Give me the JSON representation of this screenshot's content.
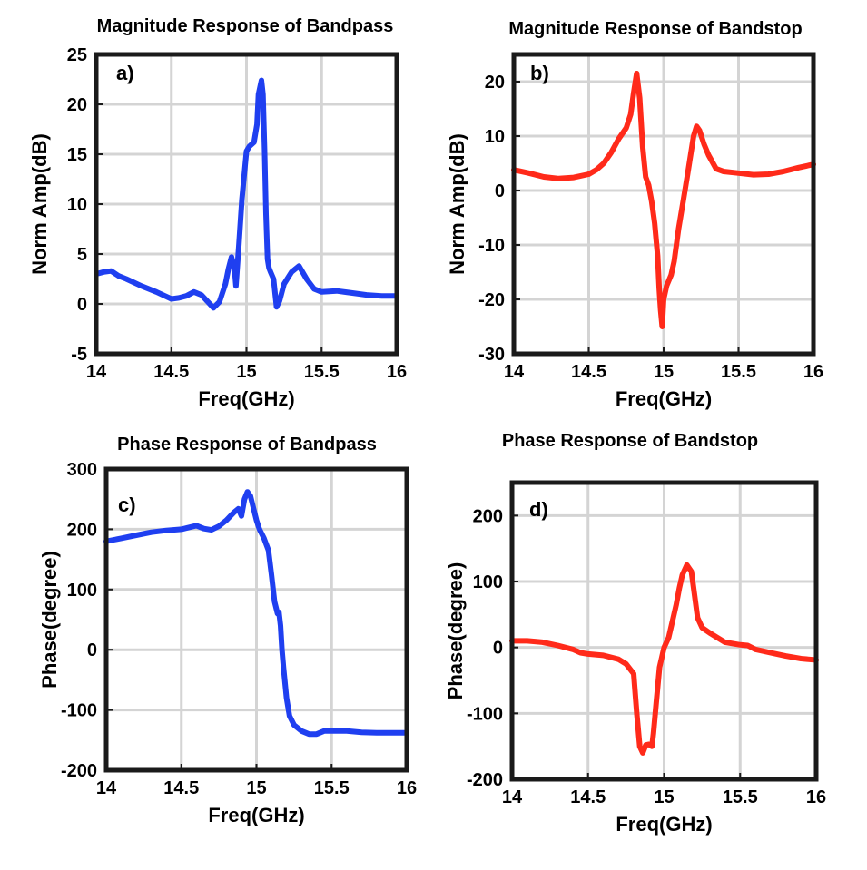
{
  "figure": {
    "background": "#ffffff",
    "axis_color": "#1a1a1a",
    "grid_color": "#d4d4d4"
  },
  "chart_data": [
    {
      "id": "a",
      "type": "line",
      "panel_label": "a)",
      "title": "Magnitude Response of Bandpass",
      "xlabel": "Freq(GHz)",
      "ylabel": "Norm Amp(dB)",
      "xlim": [
        14,
        16
      ],
      "ylim": [
        -5,
        25
      ],
      "xticks": [
        14,
        14.5,
        15,
        15.5,
        16
      ],
      "xtick_labels": [
        "14",
        "14.5",
        "15",
        "15.5",
        "16"
      ],
      "yticks": [
        -5,
        0,
        5,
        10,
        15,
        20,
        25
      ],
      "ytick_labels": [
        "-5",
        "0",
        "5",
        "10",
        "15",
        "20",
        "25"
      ],
      "grid": true,
      "legend": "none",
      "series": [
        {
          "color": "#1f3ff0",
          "x": [
            14.0,
            14.05,
            14.1,
            14.15,
            14.2,
            14.3,
            14.4,
            14.5,
            14.55,
            14.6,
            14.65,
            14.7,
            14.75,
            14.78,
            14.82,
            14.86,
            14.88,
            14.9,
            14.92,
            14.93,
            14.95,
            14.97,
            15.0,
            15.02,
            15.05,
            15.07,
            15.08,
            15.1,
            15.11,
            15.12,
            15.13,
            15.14,
            15.15,
            15.16,
            15.18,
            15.2,
            15.22,
            15.25,
            15.3,
            15.35,
            15.4,
            15.45,
            15.5,
            15.6,
            15.7,
            15.8,
            15.9,
            16.0
          ],
          "y": [
            3.0,
            3.2,
            3.3,
            2.8,
            2.5,
            1.8,
            1.2,
            0.5,
            0.6,
            0.8,
            1.2,
            0.9,
            0.1,
            -0.4,
            0.2,
            2.0,
            3.5,
            4.7,
            3.5,
            1.8,
            6.0,
            10.5,
            15.3,
            15.8,
            16.2,
            18.0,
            21.0,
            22.4,
            21.0,
            15.5,
            9.0,
            4.5,
            3.6,
            3.2,
            2.5,
            -0.3,
            0.3,
            2.0,
            3.2,
            3.8,
            2.5,
            1.5,
            1.2,
            1.3,
            1.1,
            0.9,
            0.8,
            0.8
          ]
        }
      ]
    },
    {
      "id": "b",
      "type": "line",
      "panel_label": "b)",
      "title": "Magnitude Response of Bandstop",
      "xlabel": "Freq(GHz)",
      "ylabel": "Norm Amp(dB)",
      "xlim": [
        14,
        16
      ],
      "ylim": [
        -30,
        25
      ],
      "xticks": [
        14,
        14.5,
        15,
        15.5,
        16
      ],
      "xtick_labels": [
        "14",
        "14.5",
        "15",
        "15.5",
        "16"
      ],
      "yticks": [
        -30,
        -20,
        -10,
        0,
        10,
        20
      ],
      "ytick_labels": [
        "-30",
        "-20",
        "-10",
        "0",
        "10",
        "20"
      ],
      "grid": true,
      "legend": "none",
      "series": [
        {
          "color": "#ff2a1a",
          "x": [
            14.0,
            14.1,
            14.2,
            14.3,
            14.4,
            14.5,
            14.55,
            14.6,
            14.65,
            14.7,
            14.75,
            14.78,
            14.8,
            14.82,
            14.84,
            14.86,
            14.88,
            14.9,
            14.92,
            14.94,
            14.96,
            14.97,
            14.98,
            14.99,
            15.0,
            15.02,
            15.05,
            15.07,
            15.1,
            15.13,
            15.16,
            15.18,
            15.2,
            15.22,
            15.24,
            15.27,
            15.3,
            15.35,
            15.4,
            15.5,
            15.6,
            15.7,
            15.8,
            15.9,
            16.0
          ],
          "y": [
            3.8,
            3.2,
            2.5,
            2.2,
            2.4,
            3.0,
            3.8,
            5.0,
            7.0,
            9.5,
            11.5,
            14.0,
            18.0,
            21.5,
            17.0,
            8.0,
            2.5,
            1.0,
            -2.0,
            -6.0,
            -12.0,
            -18.0,
            -22.0,
            -25.0,
            -20.0,
            -17.5,
            -15.5,
            -13.0,
            -7.0,
            -2.0,
            3.0,
            6.5,
            10.0,
            11.8,
            11.0,
            8.5,
            6.5,
            4.0,
            3.5,
            3.2,
            2.9,
            3.0,
            3.5,
            4.2,
            4.8
          ]
        }
      ]
    },
    {
      "id": "c",
      "type": "line",
      "panel_label": "c)",
      "title": "Phase Response of Bandpass",
      "xlabel": "Freq(GHz)",
      "ylabel": "Phase(degree)",
      "xlim": [
        14,
        16
      ],
      "ylim": [
        -200,
        300
      ],
      "xticks": [
        14,
        14.5,
        15,
        15.5,
        16
      ],
      "xtick_labels": [
        "14",
        "14.5",
        "15",
        "15.5",
        "16"
      ],
      "yticks": [
        -200,
        -100,
        0,
        100,
        200,
        300
      ],
      "ytick_labels": [
        "-200",
        "-100",
        "0",
        "100",
        "200",
        "300"
      ],
      "grid": true,
      "legend": "none",
      "series": [
        {
          "color": "#1f3ff0",
          "x": [
            14.0,
            14.1,
            14.2,
            14.3,
            14.4,
            14.5,
            14.55,
            14.6,
            14.65,
            14.7,
            14.75,
            14.8,
            14.85,
            14.88,
            14.9,
            14.92,
            14.94,
            14.96,
            14.98,
            15.0,
            15.02,
            15.05,
            15.08,
            15.1,
            15.12,
            15.14,
            15.15,
            15.16,
            15.17,
            15.18,
            15.2,
            15.22,
            15.25,
            15.3,
            15.35,
            15.4,
            15.45,
            15.5,
            15.6,
            15.7,
            15.8,
            15.9,
            16.0
          ],
          "y": [
            180,
            185,
            190,
            195,
            198,
            200,
            203,
            206,
            201,
            199,
            205,
            215,
            228,
            234,
            222,
            250,
            262,
            255,
            235,
            215,
            200,
            185,
            165,
            125,
            80,
            60,
            62,
            40,
            0,
            -30,
            -80,
            -110,
            -125,
            -135,
            -140,
            -140,
            -135,
            -135,
            -135,
            -137,
            -138,
            -138,
            -138
          ]
        }
      ]
    },
    {
      "id": "d",
      "type": "line",
      "panel_label": "d)",
      "title": "Phase Response of Bandstop",
      "xlabel": "Freq(GHz)",
      "ylabel": "Phase(degree)",
      "xlim": [
        14,
        16
      ],
      "ylim": [
        -200,
        250
      ],
      "xticks": [
        14,
        14.5,
        15,
        15.5,
        16
      ],
      "xtick_labels": [
        "14",
        "14.5",
        "15",
        "15.5",
        "16"
      ],
      "yticks": [
        -200,
        -100,
        0,
        100,
        200
      ],
      "ytick_labels": [
        "-200",
        "-100",
        "0",
        "100",
        "200"
      ],
      "grid": true,
      "legend": "none",
      "series": [
        {
          "color": "#ff2a1a",
          "x": [
            14.0,
            14.1,
            14.2,
            14.3,
            14.4,
            14.45,
            14.5,
            14.6,
            14.7,
            14.75,
            14.8,
            14.82,
            14.84,
            14.86,
            14.88,
            14.9,
            14.92,
            14.93,
            14.95,
            14.97,
            15.0,
            15.03,
            15.05,
            15.08,
            15.1,
            15.12,
            15.15,
            15.18,
            15.2,
            15.22,
            15.25,
            15.3,
            15.35,
            15.4,
            15.5,
            15.55,
            15.6,
            15.7,
            15.8,
            15.9,
            16.0
          ],
          "y": [
            10,
            10,
            8,
            3,
            -3,
            -8,
            -10,
            -12,
            -18,
            -25,
            -40,
            -100,
            -150,
            -160,
            -148,
            -147,
            -150,
            -130,
            -80,
            -30,
            0,
            15,
            35,
            65,
            90,
            110,
            125,
            115,
            80,
            45,
            30,
            22,
            15,
            8,
            4,
            3,
            -3,
            -8,
            -13,
            -17,
            -19
          ]
        }
      ]
    }
  ]
}
